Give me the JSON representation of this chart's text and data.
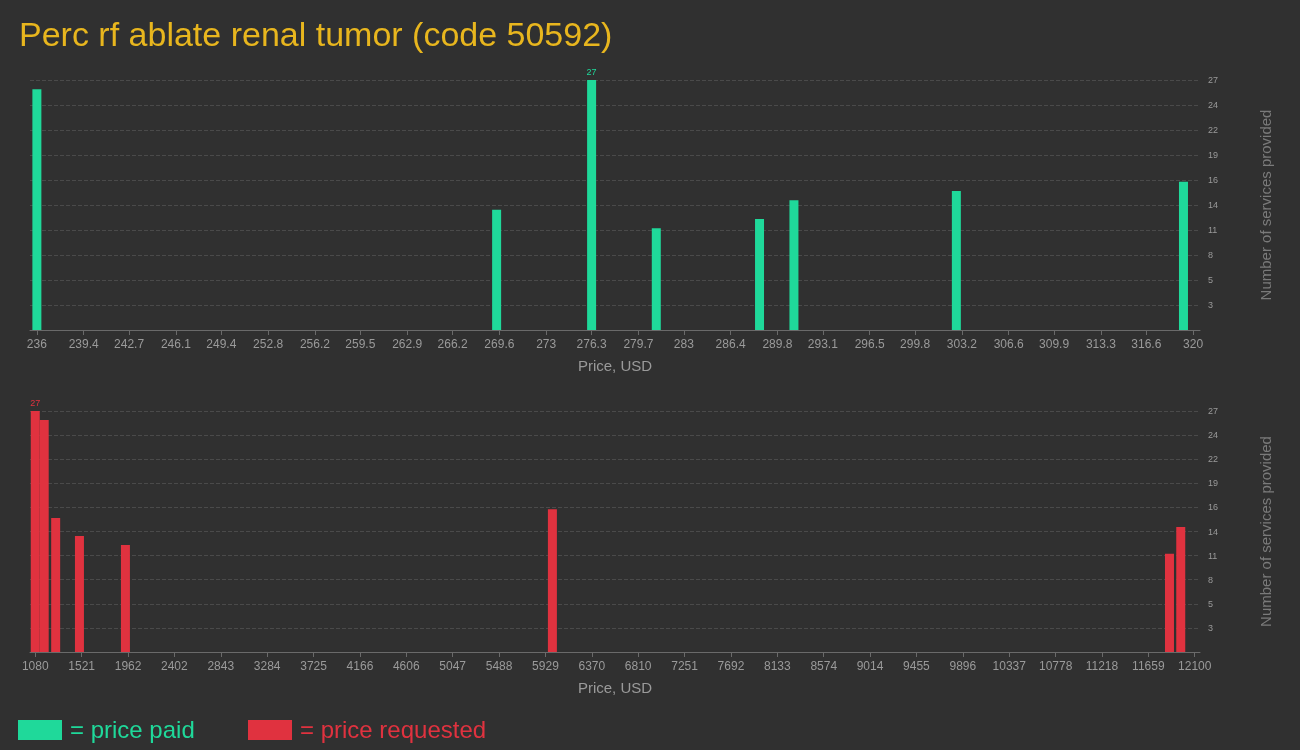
{
  "chart_data": [
    {
      "type": "bar",
      "title": "Perc rf ablate renal tumor (code 50592)",
      "xlabel": "Price, USD",
      "ylabel": "Number of services provided",
      "x": [
        236,
        269.4,
        276.3,
        281,
        288.5,
        291,
        302.8,
        319.3
      ],
      "series": [
        {
          "name": "= price paid",
          "color": "#1fd99a",
          "values": [
            26,
            13,
            27,
            11,
            12,
            14,
            15,
            16
          ],
          "value_labels": [
            null,
            null,
            "27",
            null,
            null,
            null,
            null,
            null
          ]
        }
      ],
      "xlim": [
        235.5,
        320.5
      ],
      "xticks": [
        236,
        239.4,
        242.7,
        246.1,
        249.4,
        252.8,
        256.2,
        259.5,
        262.9,
        266.2,
        269.6,
        273,
        276.3,
        279.7,
        283,
        286.4,
        289.8,
        293.1,
        296.5,
        299.8,
        303.2,
        306.6,
        309.9,
        313.3,
        316.6,
        320
      ],
      "ylim": [
        0,
        27
      ],
      "yticks": [
        {
          "value": 2.7,
          "label": "3"
        },
        {
          "value": 5.4,
          "label": "5"
        },
        {
          "value": 8.1,
          "label": "8"
        },
        {
          "value": 10.8,
          "label": "11"
        },
        {
          "value": 13.5,
          "label": "14"
        },
        {
          "value": 16.2,
          "label": "16"
        },
        {
          "value": 18.9,
          "label": "19"
        },
        {
          "value": 21.6,
          "label": "22"
        },
        {
          "value": 24.3,
          "label": "24"
        },
        27
      ],
      "grid": "y",
      "legend": "bottom left"
    },
    {
      "type": "bar",
      "xlabel": "Price, USD",
      "ylabel": "Number of services provided",
      "x": [
        1080,
        1165,
        1274,
        1500,
        1937,
        5995,
        11860,
        11967
      ],
      "series": [
        {
          "name": "= price requested",
          "color": "#e0323f",
          "values": [
            27,
            26,
            15,
            13,
            12,
            16,
            11,
            14
          ],
          "value_labels": [
            "27",
            null,
            null,
            null,
            null,
            null,
            null,
            null
          ]
        }
      ],
      "xlim": [
        1030,
        12150
      ],
      "xticks": [
        1080,
        1521,
        1962,
        2402,
        2843,
        3284,
        3725,
        4166,
        4606,
        5047,
        5488,
        5929,
        6370,
        6810,
        7251,
        7692,
        8133,
        8574,
        9014,
        9455,
        9896,
        10337,
        10778,
        11218,
        11659,
        12100
      ],
      "ylim": [
        0,
        27
      ],
      "yticks": [
        {
          "value": 2.7,
          "label": "3"
        },
        {
          "value": 5.4,
          "label": "5"
        },
        {
          "value": 8.1,
          "label": "8"
        },
        {
          "value": 10.8,
          "label": "11"
        },
        {
          "value": 13.5,
          "label": "14"
        },
        {
          "value": 16.2,
          "label": "16"
        },
        {
          "value": 18.9,
          "label": "19"
        },
        {
          "value": 21.6,
          "label": "22"
        },
        {
          "value": 24.3,
          "label": "24"
        },
        27
      ],
      "grid": "y",
      "legend": "bottom left"
    }
  ]
}
